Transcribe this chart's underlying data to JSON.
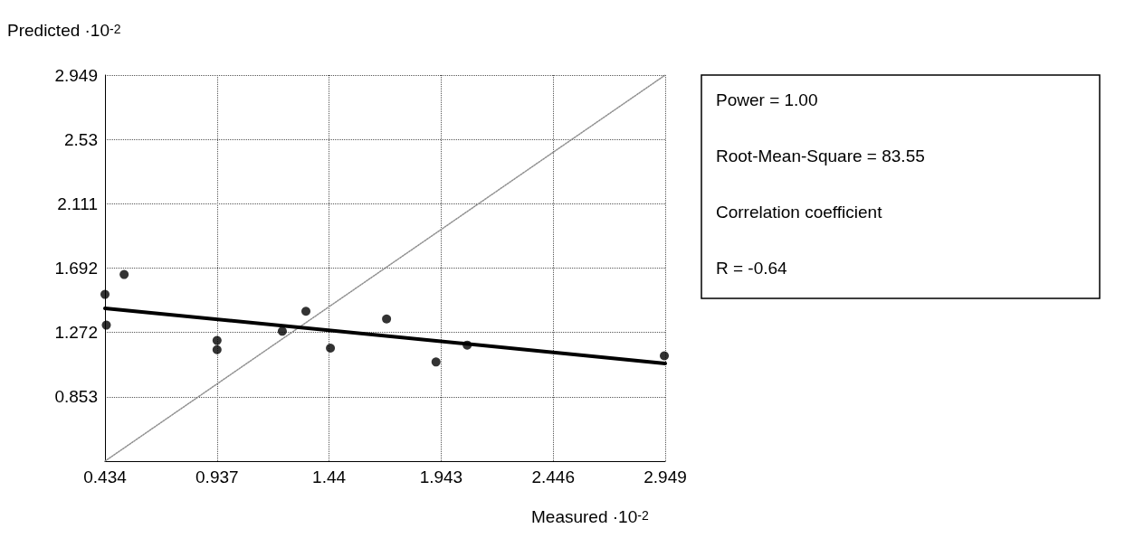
{
  "chart_data": {
    "type": "scatter",
    "xlabel": "Measured ·10$^{-2}$",
    "ylabel": "Predicted ·10$^{-2}$",
    "xlim": [
      0.434,
      2.949
    ],
    "ylim": [
      0.434,
      2.949
    ],
    "xticks": [
      0.434,
      0.937,
      1.44,
      1.943,
      2.446,
      2.949
    ],
    "yticks": [
      {
        "value": 0.434,
        "label": null
      },
      0.853,
      1.272,
      1.692,
      2.111,
      2.53,
      2.949
    ],
    "grid": true,
    "series": [
      {
        "type": "line",
        "color": "#909090",
        "x": [
          0.434,
          2.949
        ],
        "values": [
          0.434,
          2.949
        ],
        "marker": "none",
        "line_style": "dotted"
      },
      {
        "type": "line",
        "color": "#000000",
        "x": [
          0.434,
          2.949
        ],
        "values": [
          1.43,
          1.07
        ],
        "marker": "none",
        "line_style": "solid"
      },
      {
        "type": "scatter",
        "color": "#000000",
        "marker": "circle",
        "x": [
          0.434,
          0.52,
          0.44,
          0.937,
          0.937,
          1.23,
          1.336,
          1.446,
          1.698,
          1.92,
          2.06,
          2.945
        ],
        "values": [
          1.52,
          1.65,
          1.32,
          1.22,
          1.16,
          1.28,
          1.41,
          1.17,
          1.36,
          1.08,
          1.19,
          1.12
        ]
      }
    ],
    "annotations": [
      "Power = 1.00",
      "Root-Mean-Square = 83.55",
      "Correlation coefficient",
      "R = -0.64"
    ]
  }
}
